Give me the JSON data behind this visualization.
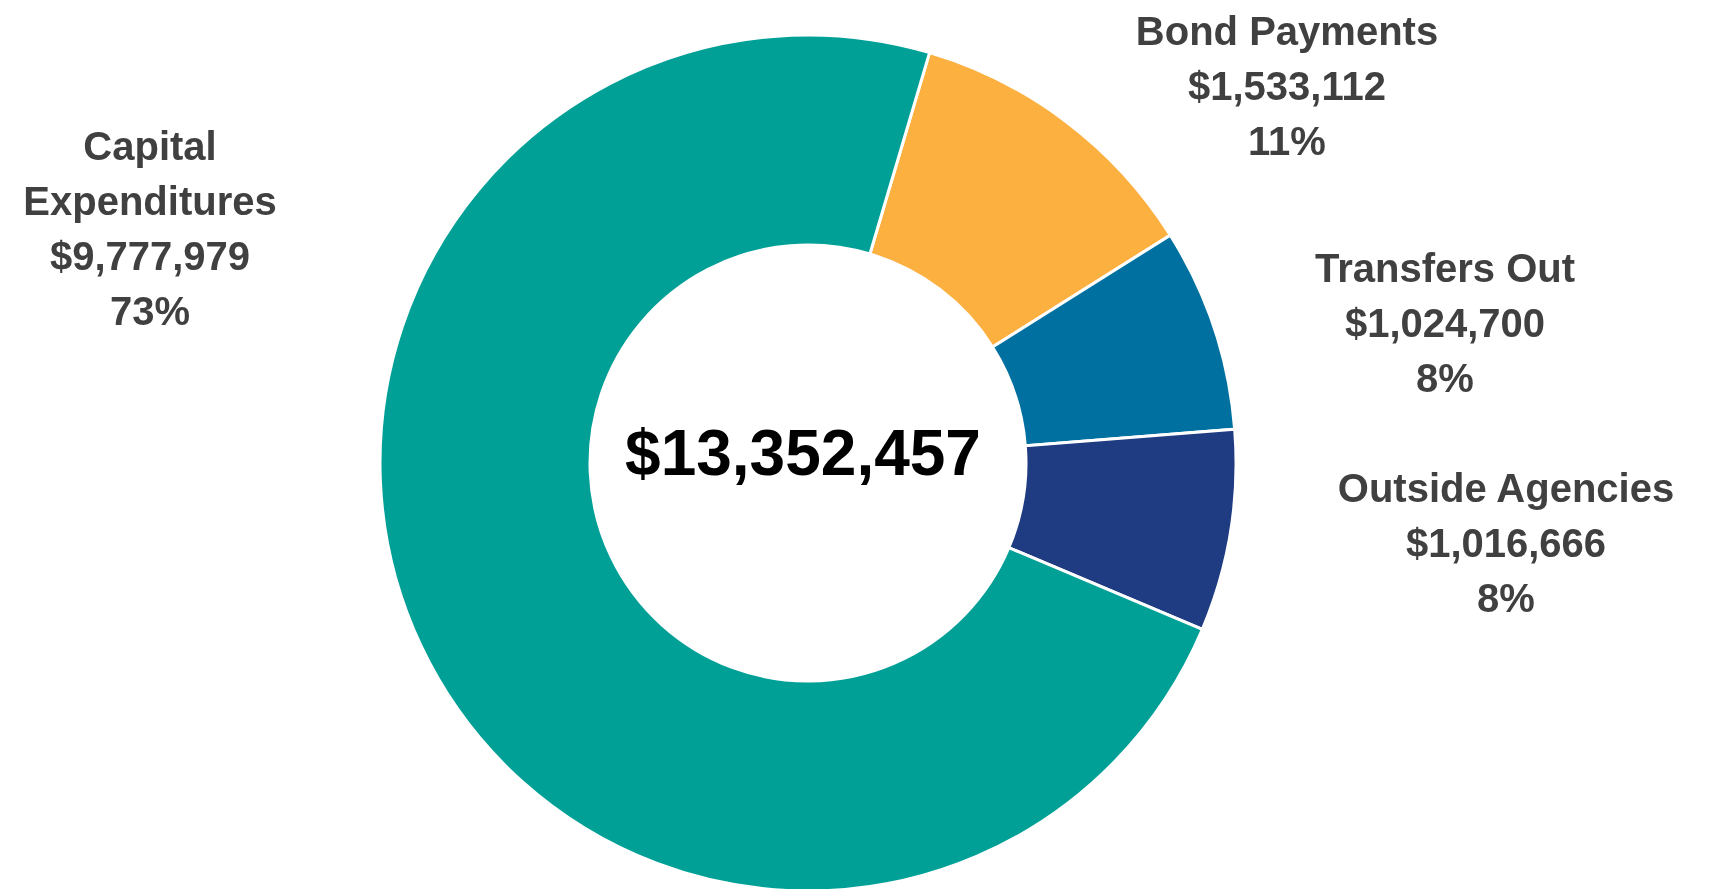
{
  "chart_data": {
    "type": "donut",
    "categories": [
      "Bond Payments",
      "Transfers Out",
      "Outside Agencies",
      "Capital Expenditures"
    ],
    "values": [
      1533112,
      1024700,
      1016666,
      9777979
    ],
    "colors": [
      "#fbb040",
      "#0070a0",
      "#1f3c82",
      "#00a097"
    ],
    "value_labels": [
      "$1,533,112\n11%",
      "$1,024,700\n8%",
      "$1,016,666\n8%",
      "$9,777,979\n73%"
    ],
    "annotations": [
      "$13,352,457"
    ]
  }
}
